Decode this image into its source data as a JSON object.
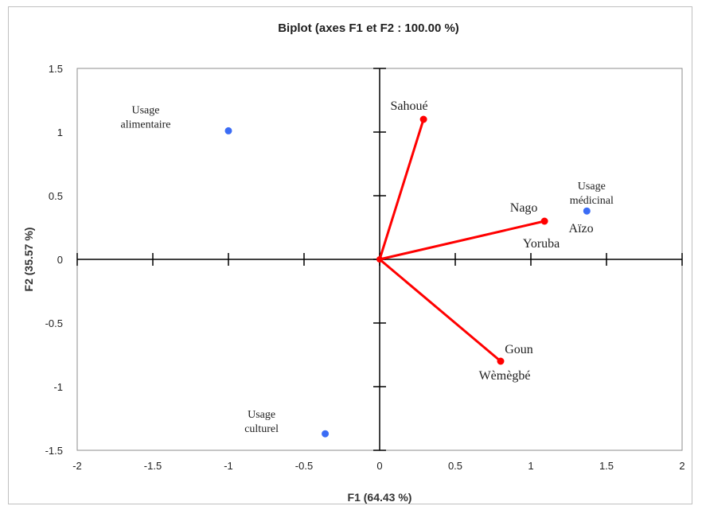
{
  "chart_data": {
    "type": "scatter",
    "title": "Biplot (axes F1 et F2 : 100.00 %)",
    "xlabel": "F1 (64.43 %)",
    "ylabel": "F2 (35.57 %)",
    "xlim": [
      -2,
      2
    ],
    "ylim": [
      -1.5,
      1.5
    ],
    "xticks": [
      "-2",
      "-1.5",
      "-1",
      "-0.5",
      "0",
      "0.5",
      "1",
      "1.5",
      "2"
    ],
    "yticks": [
      "1.5",
      "1",
      "0.5",
      "0",
      "-0.5",
      "-1",
      "-1.5"
    ],
    "grid": false,
    "variables": {
      "color": "#ff0000",
      "points": [
        {
          "label": "Sahoué",
          "x": 0.29,
          "y": 1.1
        },
        {
          "label": "Nago",
          "x": 1.09,
          "y": 0.3
        },
        {
          "label": "Aïzo",
          "x": 1.09,
          "y": 0.3
        },
        {
          "label": "Yoruba",
          "x": 1.09,
          "y": 0.3
        },
        {
          "label": "Goun",
          "x": 0.8,
          "y": -0.8
        },
        {
          "label": "Wèmègbé",
          "x": 0.8,
          "y": -0.8
        }
      ]
    },
    "observations": {
      "color": "#3b6cf5",
      "points": [
        {
          "label_lines": [
            "Usage",
            "alimentaire"
          ],
          "x": -1.0,
          "y": 1.01
        },
        {
          "label_lines": [
            "Usage",
            "médicinal"
          ],
          "x": 1.37,
          "y": 0.38
        },
        {
          "label_lines": [
            "Usage",
            "culturel"
          ],
          "x": -0.36,
          "y": -1.37
        }
      ]
    }
  }
}
